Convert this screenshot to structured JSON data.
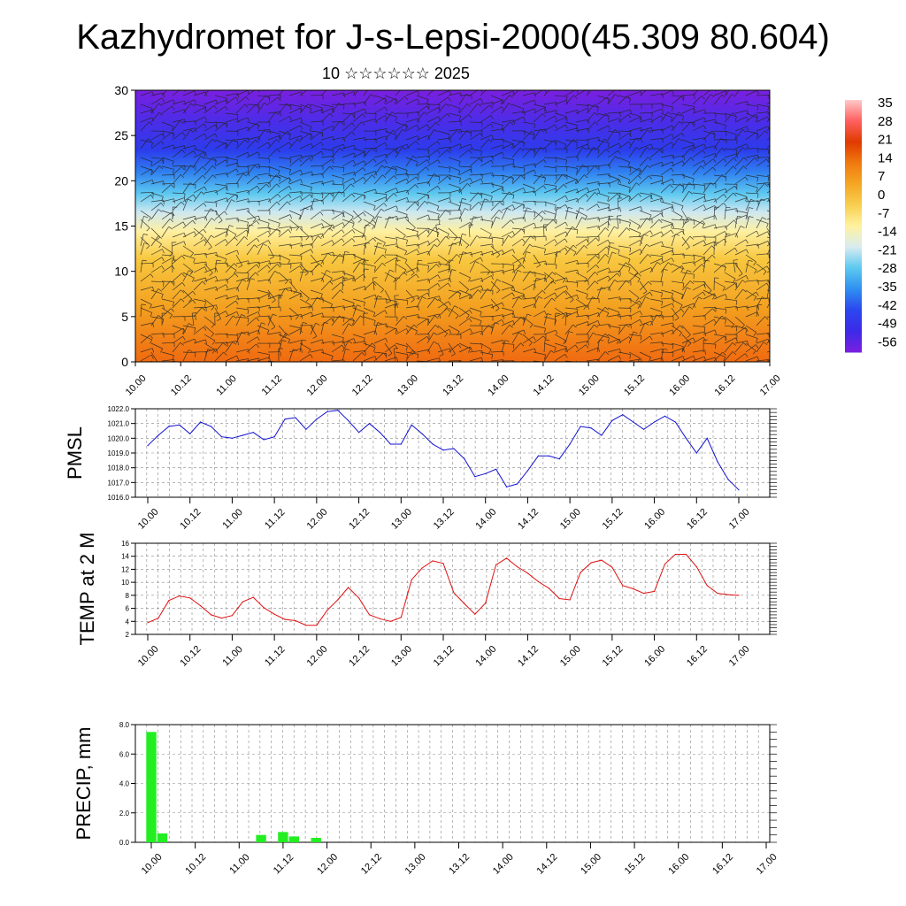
{
  "title": "Kazhydromet for J-s-Lepsi-2000(45.309 80.604)",
  "subtitle": "10 ☆☆☆☆☆☆ 2025",
  "time_ticks": [
    "10.00",
    "10.12",
    "11.00",
    "11.12",
    "12.00",
    "12.12",
    "13.00",
    "13.12",
    "14.00",
    "14.12",
    "15.00",
    "15.12",
    "16.00",
    "16.12",
    "17.00"
  ],
  "chart_data": [
    {
      "type": "heatmap",
      "name_note": "temperature cross-section with wind barbs",
      "ylim": [
        0,
        30
      ],
      "y_ticks": [
        "0",
        "5",
        "10",
        "15",
        "20",
        "25",
        "30"
      ],
      "colorbar_labels": [
        "35",
        "28",
        "21",
        "14",
        "7",
        "0",
        "-7",
        "-14",
        "-21",
        "-28",
        "-35",
        "-42",
        "-49",
        "-56"
      ],
      "color_stops": [
        "#7a1fe0",
        "#3c2ae8",
        "#2b47f0",
        "#2f8ff0",
        "#5cc8f0",
        "#d8ecf0",
        "#fff2a0",
        "#f8cf50",
        "#f5a623",
        "#f07a10",
        "#e03a00",
        "#ff6060",
        "#ffc8c8"
      ]
    },
    {
      "type": "line",
      "ylabel": "PMSL",
      "ylim": [
        1016.0,
        1022.0
      ],
      "y_ticks": [
        "1016.0",
        "1017.0",
        "1018.0",
        "1019.0",
        "1020.0",
        "1021.0",
        "1022.0"
      ],
      "color": "#1010d0",
      "values": [
        1019.5,
        1020.2,
        1020.8,
        1020.9,
        1020.3,
        1021.1,
        1020.8,
        1020.1,
        1020.0,
        1020.2,
        1020.4,
        1019.9,
        1020.1,
        1021.3,
        1021.4,
        1020.6,
        1021.3,
        1021.8,
        1021.9,
        1021.2,
        1020.4,
        1021.0,
        1020.4,
        1019.6,
        1019.6,
        1020.9,
        1020.3,
        1019.6,
        1019.2,
        1019.3,
        1018.6,
        1017.4,
        1017.6,
        1017.9,
        1016.7,
        1016.9,
        1017.8,
        1018.8,
        1018.8,
        1018.6,
        1019.6,
        1020.8,
        1020.7,
        1020.2,
        1021.2,
        1021.6,
        1021.1,
        1020.6,
        1021.1,
        1021.5,
        1021.1,
        1020.0,
        1019.0,
        1020.0,
        1018.4,
        1017.2,
        1016.5
      ]
    },
    {
      "type": "line",
      "ylabel": "TEMP at 2 M",
      "ylim": [
        2,
        16
      ],
      "y_ticks": [
        "2",
        "4",
        "6",
        "8",
        "10",
        "12",
        "14",
        "16"
      ],
      "color": "#e01010",
      "values": [
        3.8,
        4.5,
        7.2,
        7.9,
        7.6,
        6.4,
        5.0,
        4.5,
        4.9,
        7.0,
        7.7,
        6.1,
        5.1,
        4.3,
        4.1,
        3.4,
        3.4,
        5.7,
        7.3,
        9.2,
        7.6,
        5.0,
        4.4,
        4.0,
        4.6,
        10.4,
        12.2,
        13.3,
        12.9,
        8.4,
        6.7,
        5.1,
        6.8,
        12.7,
        13.7,
        12.4,
        11.4,
        10.1,
        9.1,
        7.5,
        7.3,
        11.5,
        13.0,
        13.4,
        12.3,
        9.5,
        9.0,
        8.3,
        8.6,
        12.8,
        14.3,
        14.3,
        12.4,
        9.5,
        8.3,
        8.1,
        8.0
      ]
    },
    {
      "type": "bar",
      "ylabel": "PRECIP, mm",
      "ylim": [
        0,
        8
      ],
      "y_ticks": [
        "0.0",
        "2.0",
        "4.0",
        "6.0",
        "8.0"
      ],
      "color": "#22ee22",
      "values": [
        7.5,
        0.6,
        0,
        0,
        0,
        0,
        0,
        0,
        0,
        0,
        0.5,
        0,
        0.7,
        0.4,
        0,
        0.3,
        0,
        0,
        0,
        0,
        0,
        0,
        0,
        0,
        0,
        0,
        0,
        0,
        0,
        0,
        0,
        0,
        0,
        0,
        0,
        0,
        0,
        0,
        0,
        0,
        0,
        0,
        0,
        0,
        0,
        0,
        0,
        0,
        0,
        0,
        0,
        0,
        0,
        0,
        0,
        0,
        0
      ]
    }
  ]
}
